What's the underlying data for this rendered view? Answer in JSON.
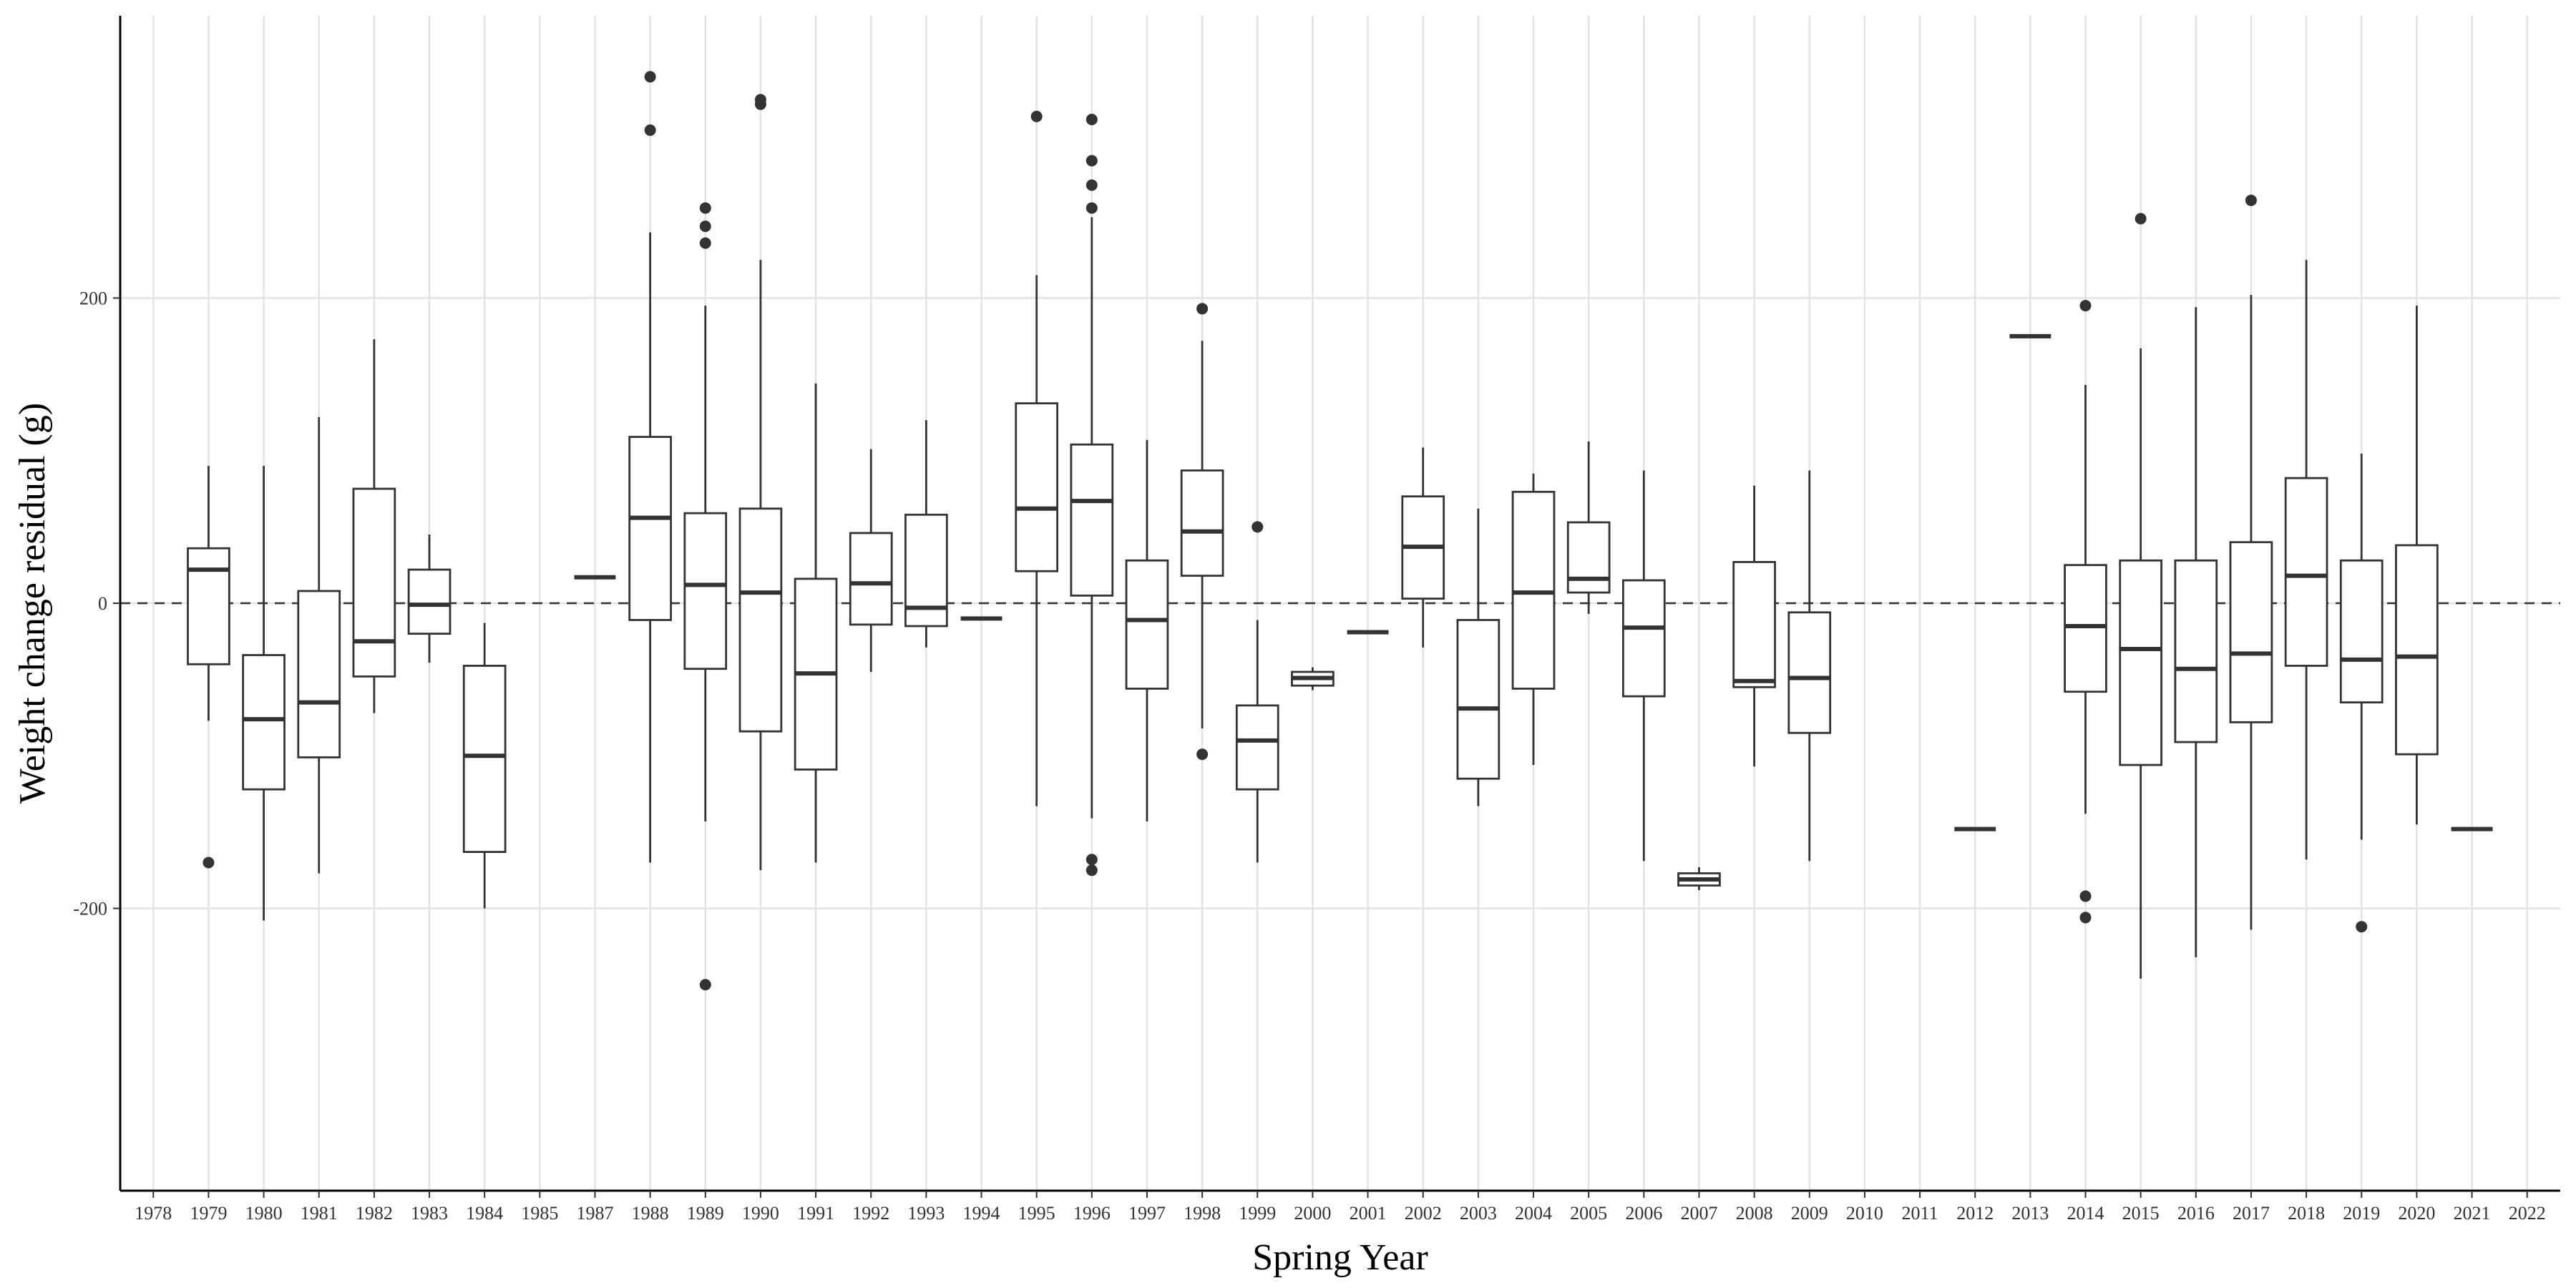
{
  "chart_data": {
    "type": "boxplot",
    "title": "",
    "xlabel": "Spring Year",
    "ylabel": "Weight change residual (g)",
    "ylim": [
      -385,
      385
    ],
    "yticks": [
      -200,
      0,
      200
    ],
    "reference_line": {
      "y": 0,
      "style": "dashed"
    },
    "grid": true,
    "legend": "none",
    "categories": [
      "1978",
      "1979",
      "1980",
      "1981",
      "1982",
      "1983",
      "1984",
      "1985",
      "1987",
      "1988",
      "1989",
      "1990",
      "1991",
      "1992",
      "1993",
      "1994",
      "1995",
      "1996",
      "1997",
      "1998",
      "1999",
      "2000",
      "2001",
      "2002",
      "2003",
      "2004",
      "2005",
      "2006",
      "2007",
      "2008",
      "2009",
      "2010",
      "2011",
      "2012",
      "2013",
      "2014",
      "2015",
      "2016",
      "2017",
      "2018",
      "2019",
      "2020",
      "2021",
      "2022"
    ],
    "boxes": [
      {
        "x": "1979",
        "lower": -77,
        "q1": -40,
        "median": 22,
        "q3": 36,
        "upper": 90,
        "outliers": [
          -170
        ]
      },
      {
        "x": "1980",
        "lower": -208,
        "q1": -122,
        "median": -76,
        "q3": -34,
        "upper": 90,
        "outliers": []
      },
      {
        "x": "1981",
        "lower": -177,
        "q1": -101,
        "median": -65,
        "q3": 8,
        "upper": 122,
        "outliers": []
      },
      {
        "x": "1982",
        "lower": -72,
        "q1": -48,
        "median": -25,
        "q3": 75,
        "upper": 173,
        "outliers": []
      },
      {
        "x": "1983",
        "lower": -39,
        "q1": -20,
        "median": -1,
        "q3": 22,
        "upper": 45,
        "outliers": []
      },
      {
        "x": "1984",
        "lower": -200,
        "q1": -163,
        "median": -100,
        "q3": -41,
        "upper": -13,
        "outliers": []
      },
      {
        "x": "1987",
        "lower": 17,
        "q1": 17,
        "median": 17,
        "q3": 17,
        "upper": 17,
        "outliers": []
      },
      {
        "x": "1988",
        "lower": -170,
        "q1": -11,
        "median": 56,
        "q3": 109,
        "upper": 243,
        "outliers": [
          310,
          345
        ]
      },
      {
        "x": "1989",
        "lower": -143,
        "q1": -43,
        "median": 12,
        "q3": 59,
        "upper": 195,
        "outliers": [
          236,
          247,
          259,
          -250
        ]
      },
      {
        "x": "1990",
        "lower": -175,
        "q1": -84,
        "median": 7,
        "q3": 62,
        "upper": 225,
        "outliers": [
          327,
          330
        ]
      },
      {
        "x": "1991",
        "lower": -170,
        "q1": -109,
        "median": -46,
        "q3": 16,
        "upper": 144,
        "outliers": []
      },
      {
        "x": "1992",
        "lower": -45,
        "q1": -14,
        "median": 13,
        "q3": 46,
        "upper": 101,
        "outliers": []
      },
      {
        "x": "1993",
        "lower": -29,
        "q1": -15,
        "median": -3,
        "q3": 58,
        "upper": 120,
        "outliers": []
      },
      {
        "x": "1994",
        "lower": -10,
        "q1": -10,
        "median": -10,
        "q3": -10,
        "upper": -10,
        "outliers": []
      },
      {
        "x": "1995",
        "lower": -133,
        "q1": 21,
        "median": 62,
        "q3": 131,
        "upper": 215,
        "outliers": [
          319
        ]
      },
      {
        "x": "1996",
        "lower": -141,
        "q1": 5,
        "median": 67,
        "q3": 104,
        "upper": 253,
        "outliers": [
          259,
          274,
          290,
          317,
          -168,
          -175
        ]
      },
      {
        "x": "1997",
        "lower": -143,
        "q1": -56,
        "median": -11,
        "q3": 28,
        "upper": 107,
        "outliers": []
      },
      {
        "x": "1998",
        "lower": -82,
        "q1": 18,
        "median": 47,
        "q3": 87,
        "upper": 172,
        "outliers": [
          193,
          -99
        ]
      },
      {
        "x": "1999",
        "lower": -170,
        "q1": -122,
        "median": -90,
        "q3": -67,
        "upper": -11,
        "outliers": [
          50
        ]
      },
      {
        "x": "2000",
        "lower": -57,
        "q1": -54,
        "median": -49,
        "q3": -45,
        "upper": -42,
        "outliers": []
      },
      {
        "x": "2001",
        "lower": -19,
        "q1": -19,
        "median": -19,
        "q3": -19,
        "upper": -19,
        "outliers": []
      },
      {
        "x": "2002",
        "lower": -29,
        "q1": 3,
        "median": 37,
        "q3": 70,
        "upper": 102,
        "outliers": []
      },
      {
        "x": "2003",
        "lower": -133,
        "q1": -115,
        "median": -69,
        "q3": -11,
        "upper": 62,
        "outliers": []
      },
      {
        "x": "2004",
        "lower": -106,
        "q1": -56,
        "median": 7,
        "q3": 73,
        "upper": 85,
        "outliers": []
      },
      {
        "x": "2005",
        "lower": -7,
        "q1": 7,
        "median": 16,
        "q3": 53,
        "upper": 106,
        "outliers": []
      },
      {
        "x": "2006",
        "lower": -169,
        "q1": -61,
        "median": -16,
        "q3": 15,
        "upper": 87,
        "outliers": []
      },
      {
        "x": "2007",
        "lower": -188,
        "q1": -185,
        "median": -181,
        "q3": -177,
        "upper": -173,
        "outliers": []
      },
      {
        "x": "2008",
        "lower": -107,
        "q1": -55,
        "median": -51,
        "q3": 27,
        "upper": 77,
        "outliers": []
      },
      {
        "x": "2009",
        "lower": -169,
        "q1": -85,
        "median": -49,
        "q3": -6,
        "upper": 87,
        "outliers": []
      },
      {
        "x": "2012",
        "lower": -148,
        "q1": -148,
        "median": -148,
        "q3": -148,
        "upper": -148,
        "outliers": []
      },
      {
        "x": "2013",
        "lower": 175,
        "q1": 175,
        "median": 175,
        "q3": 175,
        "upper": 175,
        "outliers": []
      },
      {
        "x": "2014",
        "lower": -138,
        "q1": -58,
        "median": -15,
        "q3": 25,
        "upper": 143,
        "outliers": [
          195,
          -192,
          -206
        ]
      },
      {
        "x": "2015",
        "lower": -246,
        "q1": -106,
        "median": -30,
        "q3": 28,
        "upper": 167,
        "outliers": [
          252
        ]
      },
      {
        "x": "2016",
        "lower": -232,
        "q1": -91,
        "median": -43,
        "q3": 28,
        "upper": 194,
        "outliers": []
      },
      {
        "x": "2017",
        "lower": -214,
        "q1": -78,
        "median": -33,
        "q3": 40,
        "upper": 202,
        "outliers": [
          264
        ]
      },
      {
        "x": "2018",
        "lower": -168,
        "q1": -41,
        "median": 18,
        "q3": 82,
        "upper": 225,
        "outliers": []
      },
      {
        "x": "2019",
        "lower": -155,
        "q1": -65,
        "median": -37,
        "q3": 28,
        "upper": 98,
        "outliers": [
          -212
        ]
      },
      {
        "x": "2020",
        "lower": -145,
        "q1": -99,
        "median": -35,
        "q3": 38,
        "upper": 195,
        "outliers": []
      },
      {
        "x": "2021",
        "lower": -148,
        "q1": -148,
        "median": -148,
        "q3": -148,
        "upper": -148,
        "outliers": []
      }
    ]
  }
}
